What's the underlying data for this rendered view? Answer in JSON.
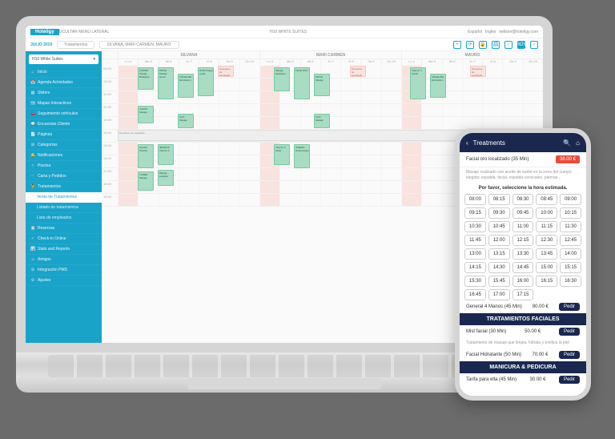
{
  "brand": "Hoteligy",
  "header": {
    "breadcrumb": "OCULTAR MENÚ LATERAL",
    "hotel": "H10 WHITE SUITES",
    "lang1": "Español",
    "lang2": "Inglés",
    "email": "neilson@hoteligy.com"
  },
  "toolbar": {
    "month": "JULIO 2019",
    "filter1": "Tratamientos",
    "filter2": "SILVANA, MARI CARMEN, MAURO",
    "today": "HOY"
  },
  "sidebar": {
    "selector": "H10 White Suites",
    "items": [
      {
        "icon": "⌂",
        "label": "Inicio"
      },
      {
        "icon": "📅",
        "label": "Agenda Actividades"
      },
      {
        "icon": "▦",
        "label": "Sliders"
      },
      {
        "icon": "🗺",
        "label": "Mapas Interactivos"
      },
      {
        "icon": "🚗",
        "label": "Seguimiento vehículos"
      },
      {
        "icon": "💬",
        "label": "Encuestas Cliente"
      },
      {
        "icon": "📄",
        "label": "Páginas"
      },
      {
        "icon": "⊞",
        "label": "Categorías"
      },
      {
        "icon": "🔔",
        "label": "Notificaciones"
      },
      {
        "icon": "≈",
        "label": "Piscina"
      },
      {
        "icon": "🛒",
        "label": "Carta y Pedidos"
      },
      {
        "icon": "💆",
        "label": "Tratamientos"
      }
    ],
    "sub_active": "Venta de Tratamientos",
    "subs": [
      "Listado de tratamientos",
      "Lista de empleados"
    ],
    "items2": [
      {
        "icon": "📋",
        "label": "Reservas"
      },
      {
        "icon": "✓",
        "label": "Check-in Online"
      },
      {
        "icon": "📊",
        "label": "Stats and Reports"
      },
      {
        "icon": "☺",
        "label": "Amigos"
      },
      {
        "icon": "⚙",
        "label": "Integración PMS"
      },
      {
        "icon": "⚙",
        "label": "Ajustes"
      }
    ]
  },
  "staff": [
    "SILVANA",
    "MARI CARMEN",
    "MAURO"
  ],
  "days": [
    "Lu 4",
    "Ma 5",
    "Mi 6",
    "Ju 7",
    "Vi 8",
    "Sa 9",
    "Do 10"
  ],
  "hours": [
    "09:00",
    "10:00",
    "11:00",
    "12:00",
    "13:00",
    "14:00",
    "15:00",
    "16:00",
    "17:00",
    "18:00",
    "19:00"
  ],
  "block_label": "Descanso de empleado",
  "phone": {
    "title": "Treatments",
    "item1": "Facial oro localizado (35 Min)",
    "price1": "38.00 €",
    "note": "Masaje realizado con aceite de karité en la zona del cuerpo elegida: espalda, facial, espalda-cervicales, piernas...",
    "instruct": "Por favor, seleccione la hora estimada.",
    "slots": [
      "08:00",
      "08:15",
      "08:30",
      "08:45",
      "09:00",
      "09:15",
      "09:30",
      "09:45",
      "10:00",
      "10:15",
      "10:30",
      "10:45",
      "11:00",
      "11:15",
      "11:30",
      "11:45",
      "12:00",
      "12:15",
      "12:30",
      "12:45",
      "13:00",
      "13:15",
      "13:30",
      "13:45",
      "14:00",
      "14:15",
      "14:30",
      "14:45",
      "15:00",
      "15:15",
      "15:30",
      "15:45",
      "16:00",
      "16:15",
      "16:30",
      "16:45",
      "17:00",
      "17:15"
    ],
    "general": "General 4 Manos (45 Min)",
    "general_price": "80.00 €",
    "pedir": "Pedir",
    "section1": "TRATAMIENTOS FACIALES",
    "facial1": "Mist facial (30 Min)",
    "facial1_price": "50.00 €",
    "facial_note": "Tratamiento de masaje que limpia, hidrata y tonifica la piel",
    "facial2": "Facial Hidratante (50 Min)",
    "facial2_price": "70.00 €",
    "section2": "MANICURA & PEDICURA",
    "mani": "Tarifa para ella (45 Min)",
    "mani_price": "30.00 €"
  },
  "colors": {
    "accent": "#1aa3c9",
    "navy": "#1a2850",
    "green": "#a8dcc3",
    "pink": "#f9e3de",
    "red": "#e74c3c"
  }
}
